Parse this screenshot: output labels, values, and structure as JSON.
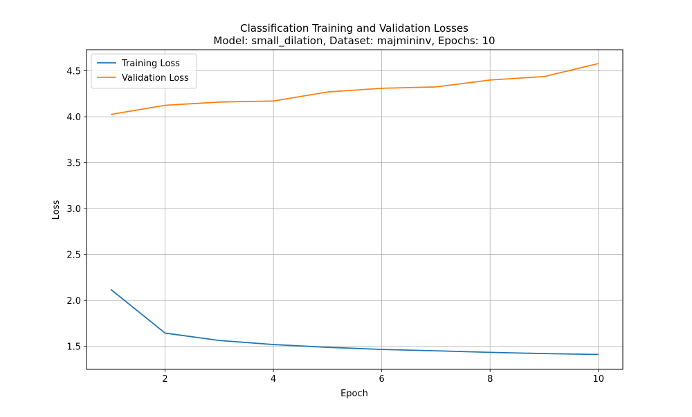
{
  "chart_data": {
    "type": "line",
    "title": "Classification Training and Validation Losses",
    "subtitle": "Model: small_dilation, Dataset: majmininv, Epochs: 10",
    "xlabel": "Epoch",
    "ylabel": "Loss",
    "x": [
      1,
      2,
      3,
      4,
      5,
      6,
      7,
      8,
      9,
      10
    ],
    "xlim": [
      0.55,
      10.45
    ],
    "ylim": [
      1.25,
      4.73
    ],
    "xticks": [
      2,
      4,
      6,
      8,
      10
    ],
    "yticks": [
      1.5,
      2.0,
      2.5,
      3.0,
      3.5,
      4.0,
      4.5
    ],
    "grid": true,
    "legend_position": "upper-left",
    "series": [
      {
        "name": "Training Loss",
        "color": "#1f77b4",
        "values": [
          2.12,
          1.645,
          1.565,
          1.52,
          1.49,
          1.467,
          1.452,
          1.435,
          1.422,
          1.412
        ]
      },
      {
        "name": "Validation Loss",
        "color": "#ff7f0e",
        "values": [
          4.025,
          4.125,
          4.16,
          4.172,
          4.27,
          4.31,
          4.325,
          4.4,
          4.438,
          4.58
        ]
      }
    ]
  }
}
